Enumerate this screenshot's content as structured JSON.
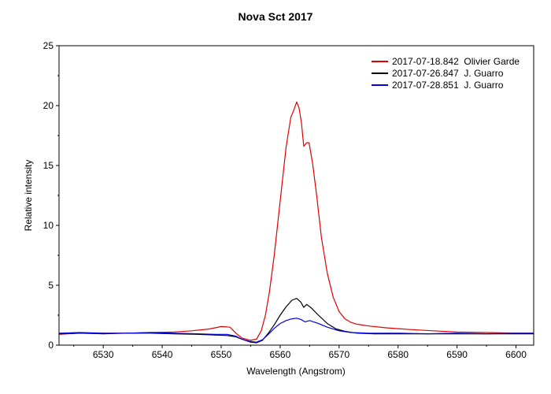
{
  "chart_data": {
    "type": "line",
    "title": "Nova Sct 2017",
    "xlabel": "Wavelength (Angstrom)",
    "ylabel": "Relative intensity",
    "xlim": [
      6522.5,
      6603
    ],
    "ylim": [
      0,
      25
    ],
    "xticks": [
      6530,
      6540,
      6550,
      6560,
      6570,
      6580,
      6590,
      6600
    ],
    "yticks": [
      0,
      5,
      10,
      15,
      20,
      25
    ],
    "grid": false,
    "legend_position": "top-right",
    "series": [
      {
        "name": "2017-07-18.842  Olivier Garde",
        "color": "#e00000",
        "x": [
          6522.5,
          6526,
          6530,
          6534,
          6538,
          6542,
          6545,
          6548,
          6550,
          6551.5,
          6552.5,
          6553.5,
          6555,
          6556,
          6556.8,
          6557.5,
          6558.2,
          6559,
          6560,
          6561,
          6561.8,
          6562.3,
          6562.8,
          6563.2,
          6563.6,
          6564.0,
          6564.5,
          6564.9,
          6565.5,
          6566.2,
          6567.0,
          6568.0,
          6569.0,
          6570.0,
          6571.0,
          6572.0,
          6573.0,
          6575.0,
          6578.0,
          6582.0,
          6586.0,
          6590.0,
          6595.0,
          6600.0,
          6603.0
        ],
        "y": [
          0.9,
          1.0,
          1.0,
          1.0,
          1.05,
          1.1,
          1.2,
          1.35,
          1.55,
          1.5,
          1.0,
          0.6,
          0.4,
          0.5,
          1.2,
          2.5,
          4.5,
          7.5,
          12.0,
          16.5,
          19.0,
          19.6,
          20.3,
          19.8,
          18.6,
          16.6,
          16.9,
          16.9,
          15.2,
          12.5,
          9.0,
          6.0,
          4.0,
          2.8,
          2.2,
          1.9,
          1.75,
          1.6,
          1.45,
          1.3,
          1.2,
          1.1,
          1.05,
          1.0,
          1.0
        ]
      },
      {
        "name": "2017-07-26.847  J. Guarro",
        "color": "#000000",
        "x": [
          6522.5,
          6526,
          6530,
          6534,
          6538,
          6542,
          6546,
          6549,
          6551,
          6552.5,
          6553.5,
          6555,
          6556,
          6557,
          6558,
          6559,
          6560,
          6561,
          6562,
          6562.8,
          6563.5,
          6564.0,
          6564.5,
          6565.3,
          6566.5,
          6568.0,
          6569.5,
          6571.0,
          6573.0,
          6576.0,
          6580.0,
          6585.0,
          6590.0,
          6595.0,
          6600.0,
          6603.0
        ],
        "y": [
          0.95,
          1.0,
          0.95,
          1.0,
          1.0,
          0.95,
          0.9,
          0.85,
          0.8,
          0.7,
          0.5,
          0.25,
          0.2,
          0.4,
          1.0,
          1.7,
          2.5,
          3.2,
          3.75,
          3.9,
          3.6,
          3.15,
          3.4,
          3.1,
          2.5,
          1.8,
          1.35,
          1.15,
          1.0,
          0.95,
          0.95,
          0.95,
          0.95,
          0.95,
          0.95,
          0.95
        ]
      },
      {
        "name": "2017-07-28.851  J. Guarro",
        "color": "#0000e0",
        "x": [
          6522.5,
          6526,
          6530,
          6534,
          6538,
          6542,
          6546,
          6549,
          6551,
          6552.5,
          6553.5,
          6555,
          6556,
          6557,
          6558,
          6559,
          6560,
          6561,
          6562,
          6562.8,
          6563.5,
          6564.2,
          6565.0,
          6566.5,
          6568.0,
          6570.0,
          6572.0,
          6575.0,
          6580.0,
          6585.0,
          6590.0,
          6595.0,
          6600.0,
          6603.0
        ],
        "y": [
          1.0,
          1.05,
          1.0,
          1.0,
          1.05,
          1.0,
          0.95,
          0.9,
          0.9,
          0.75,
          0.5,
          0.3,
          0.25,
          0.45,
          0.9,
          1.4,
          1.8,
          2.05,
          2.2,
          2.25,
          2.15,
          1.95,
          2.05,
          1.8,
          1.5,
          1.2,
          1.05,
          1.0,
          1.0,
          0.95,
          1.0,
          0.95,
          1.0,
          1.0
        ]
      }
    ]
  }
}
